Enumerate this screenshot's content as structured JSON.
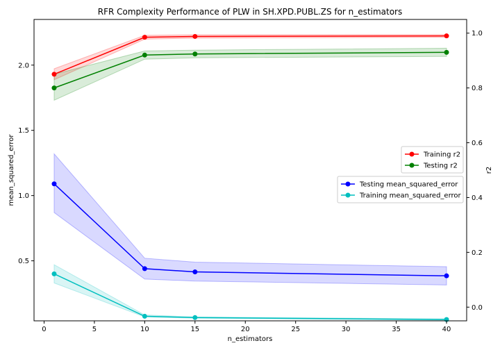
{
  "chart_data": {
    "type": "line",
    "title": "RFR Complexity Performance of PLW in SH.XPD.PUBL.ZS  for n_estimators",
    "xlabel": "n_estimators",
    "ylabel_left": "mean_squared_error",
    "ylabel_right": "r2",
    "xlim": [
      -1,
      42
    ],
    "ylim_left": [
      0.04,
      2.35
    ],
    "ylim_right": [
      -0.05,
      1.05
    ],
    "x_ticks": [
      0,
      5,
      10,
      15,
      20,
      25,
      30,
      35,
      40
    ],
    "y_ticks_left": [
      0.5,
      1.0,
      1.5,
      2.0
    ],
    "y_ticks_right": [
      0.0,
      0.2,
      0.4,
      0.6,
      0.8,
      1.0
    ],
    "x_tick_labels": [
      "0",
      "5",
      "10",
      "15",
      "20",
      "25",
      "30",
      "35",
      "40"
    ],
    "y_tick_labels_left": [
      "0.5",
      "1.0",
      "1.5",
      "2.0"
    ],
    "y_tick_labels_right": [
      "0.0",
      "0.2",
      "0.4",
      "0.6",
      "0.8",
      "1.0"
    ],
    "x": [
      1,
      10,
      15,
      40
    ],
    "series": [
      {
        "name": "Training r2",
        "axis": "right",
        "color": "#ff0000",
        "band_color": "#ff0000",
        "values": [
          0.85,
          0.985,
          0.988,
          0.99
        ],
        "lower": [
          0.83,
          0.978,
          0.982,
          0.985
        ],
        "upper": [
          0.87,
          0.992,
          0.994,
          0.995
        ]
      },
      {
        "name": "Testing r2",
        "axis": "right",
        "color": "#008000",
        "band_color": "#008000",
        "values": [
          0.8,
          0.92,
          0.924,
          0.93
        ],
        "lower": [
          0.755,
          0.905,
          0.91,
          0.915
        ],
        "upper": [
          0.85,
          0.935,
          0.938,
          0.945
        ]
      },
      {
        "name": "Testing mean_squared_error",
        "axis": "left",
        "color": "#0000ff",
        "band_color": "#0000ff",
        "values": [
          1.09,
          0.44,
          0.415,
          0.385
        ],
        "lower": [
          0.87,
          0.36,
          0.345,
          0.315
        ],
        "upper": [
          1.32,
          0.52,
          0.49,
          0.455
        ]
      },
      {
        "name": "Training mean_squared_error",
        "axis": "left",
        "color": "#00bfbf",
        "band_color": "#00bfbf",
        "values": [
          0.4,
          0.075,
          0.065,
          0.05
        ],
        "lower": [
          0.33,
          0.07,
          0.06,
          0.045
        ],
        "upper": [
          0.47,
          0.085,
          0.07,
          0.055
        ]
      }
    ],
    "legend_right": {
      "placement": "center-right",
      "entries": [
        "Training r2",
        "Testing r2"
      ]
    },
    "legend_left": {
      "placement": "center-right",
      "entries": [
        "Testing mean_squared_error",
        "Training mean_squared_error"
      ]
    },
    "grid": false
  }
}
